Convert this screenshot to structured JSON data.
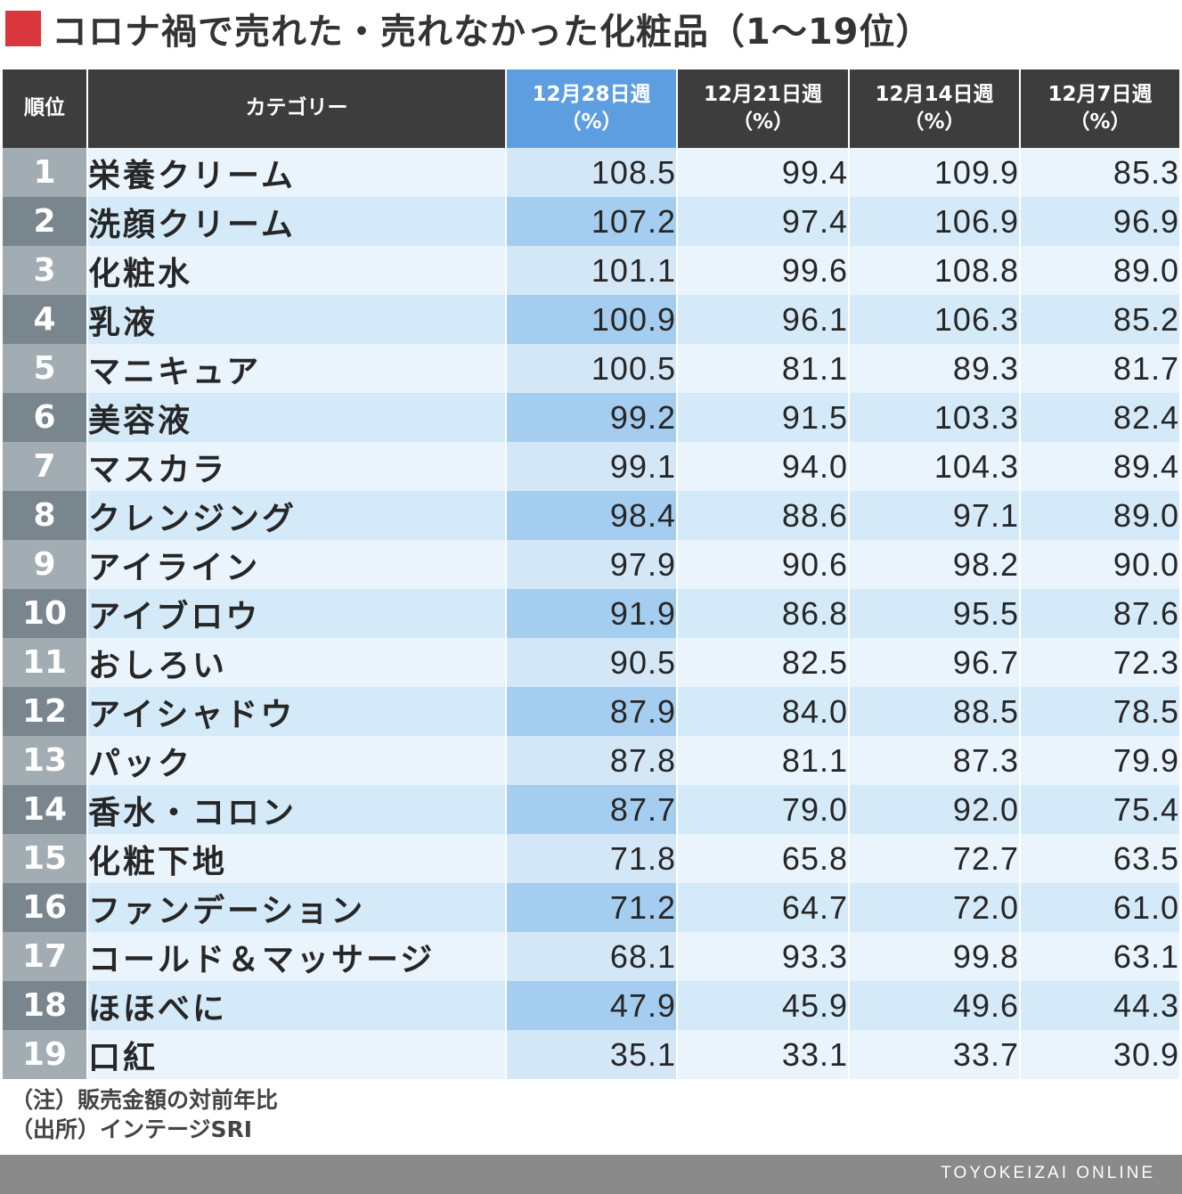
{
  "title": "コロナ禍で売れた・売れなかった化粧品（1～19位）",
  "accent_color": "#d9363e",
  "highlight_color": "#5d9ee0",
  "table": {
    "headers": {
      "rank": "順位",
      "category": "カテゴリー",
      "weeks": [
        {
          "label": "12月28日週",
          "unit": "（%）"
        },
        {
          "label": "12月21日週",
          "unit": "（%）"
        },
        {
          "label": "12月14日週",
          "unit": "（%）"
        },
        {
          "label": "12月7日週",
          "unit": "（%）"
        }
      ]
    },
    "rows": [
      {
        "rank": "1",
        "category": "栄養クリーム",
        "values": [
          "108.5",
          "99.4",
          "109.9",
          "85.3"
        ]
      },
      {
        "rank": "2",
        "category": "洗顔クリーム",
        "values": [
          "107.2",
          "97.4",
          "106.9",
          "96.9"
        ]
      },
      {
        "rank": "3",
        "category": "化粧水",
        "values": [
          "101.1",
          "99.6",
          "108.8",
          "89.0"
        ]
      },
      {
        "rank": "4",
        "category": "乳液",
        "values": [
          "100.9",
          "96.1",
          "106.3",
          "85.2"
        ]
      },
      {
        "rank": "5",
        "category": "マニキュア",
        "values": [
          "100.5",
          "81.1",
          "89.3",
          "81.7"
        ]
      },
      {
        "rank": "6",
        "category": "美容液",
        "values": [
          "99.2",
          "91.5",
          "103.3",
          "82.4"
        ]
      },
      {
        "rank": "7",
        "category": "マスカラ",
        "values": [
          "99.1",
          "94.0",
          "104.3",
          "89.4"
        ]
      },
      {
        "rank": "8",
        "category": "クレンジング",
        "values": [
          "98.4",
          "88.6",
          "97.1",
          "89.0"
        ]
      },
      {
        "rank": "9",
        "category": "アイライン",
        "values": [
          "97.9",
          "90.6",
          "98.2",
          "90.0"
        ]
      },
      {
        "rank": "10",
        "category": "アイブロウ",
        "values": [
          "91.9",
          "86.8",
          "95.5",
          "87.6"
        ]
      },
      {
        "rank": "11",
        "category": "おしろい",
        "values": [
          "90.5",
          "82.5",
          "96.7",
          "72.3"
        ]
      },
      {
        "rank": "12",
        "category": "アイシャドウ",
        "values": [
          "87.9",
          "84.0",
          "88.5",
          "78.5"
        ]
      },
      {
        "rank": "13",
        "category": "パック",
        "values": [
          "87.8",
          "81.1",
          "87.3",
          "79.9"
        ]
      },
      {
        "rank": "14",
        "category": "香水・コロン",
        "values": [
          "87.7",
          "79.0",
          "92.0",
          "75.4"
        ]
      },
      {
        "rank": "15",
        "category": "化粧下地",
        "values": [
          "71.8",
          "65.8",
          "72.7",
          "63.5"
        ]
      },
      {
        "rank": "16",
        "category": "ファンデーション",
        "values": [
          "71.2",
          "64.7",
          "72.0",
          "61.0"
        ]
      },
      {
        "rank": "17",
        "category": "コールド＆マッサージ",
        "values": [
          "68.1",
          "93.3",
          "99.8",
          "63.1"
        ]
      },
      {
        "rank": "18",
        "category": "ほほべに",
        "values": [
          "47.9",
          "45.9",
          "49.6",
          "44.3"
        ]
      },
      {
        "rank": "19",
        "category": "口紅",
        "values": [
          "35.1",
          "33.1",
          "33.7",
          "30.9"
        ]
      }
    ]
  },
  "notes": {
    "note": "（注）販売金額の対前年比",
    "source": "（出所）インテージSRI"
  },
  "footer": {
    "brand": "TOYOKEIZAI ONLINE"
  }
}
